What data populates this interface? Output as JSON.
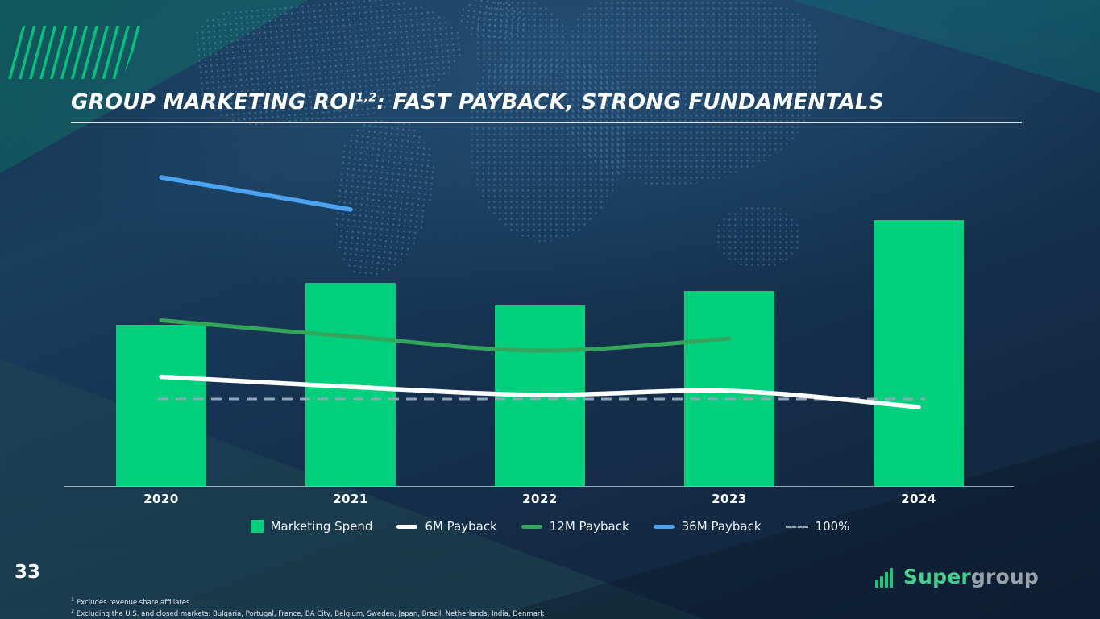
{
  "title": {
    "prefix": "GROUP MARKETING ROI",
    "superscript": "1,2",
    "suffix": ": FAST PAYBACK, STRONG FUNDAMENTALS"
  },
  "page_number": "33",
  "footnotes": [
    {
      "marker": "1",
      "text": "Excludes revenue share affiliates"
    },
    {
      "marker": "2",
      "text": "Excluding the U.S. and closed markets: Bulgaria, Portugal, France, BA City, Belgium, Sweden, Japan, Brazil, Netherlands, India, Denmark"
    }
  ],
  "logo": {
    "part1": "Super",
    "part2": "group"
  },
  "legend": {
    "items": [
      {
        "label": "Marketing Spend",
        "marker": "square",
        "color": "#00D07C"
      },
      {
        "label": "6M Payback",
        "marker": "line",
        "color": "#FFFFFF"
      },
      {
        "label": "12M Payback",
        "marker": "line",
        "color": "#33A65C"
      },
      {
        "label": "36M Payback",
        "marker": "line",
        "color": "#4CA3F2"
      },
      {
        "label": "100%",
        "marker": "dashed-line",
        "color": "#93A5B8"
      }
    ]
  },
  "chart_data": {
    "type": "bar",
    "subtype": "combo-bar-line",
    "categories": [
      "2020",
      "2021",
      "2022",
      "2023",
      "2024"
    ],
    "bar_series": {
      "name": "Marketing Spend",
      "color": "#00D07C",
      "values": [
        100,
        126,
        112,
        121,
        165
      ],
      "value_note": "relative heights estimated; no y-axis shown on slide"
    },
    "line_series": [
      {
        "name": "6M Payback",
        "color": "#FFFFFF",
        "values_pct": [
          111,
          106,
          102,
          104,
          96
        ]
      },
      {
        "name": "12M Payback",
        "color": "#33A65C",
        "values_pct": [
          139,
          131,
          124,
          130,
          null
        ]
      },
      {
        "name": "36M Payback",
        "color": "#4CA3F2",
        "values_pct": [
          210,
          194,
          null,
          null,
          null
        ]
      }
    ],
    "reference_line": {
      "name": "100%",
      "value_pct": 100,
      "color": "#93A5B8",
      "style": "dashed"
    },
    "axes": {
      "y_axis_visible": false,
      "x_labels": [
        "2020",
        "2021",
        "2022",
        "2023",
        "2024"
      ]
    },
    "legend_position": "bottom"
  }
}
